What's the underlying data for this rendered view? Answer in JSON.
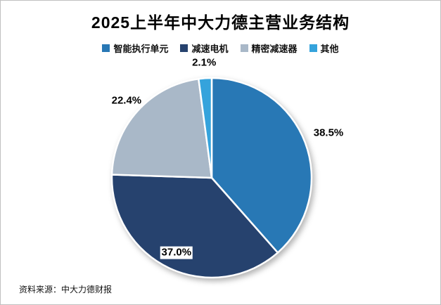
{
  "header": {
    "title": "2025上半年中大力德主营业务结构"
  },
  "chart_data": {
    "type": "pie",
    "title": "2025上半年中大力德主营业务结构",
    "categories": [
      "智能执行单元",
      "减速电机",
      "精密减速器",
      "其他"
    ],
    "values": [
      38.5,
      37.0,
      22.4,
      2.1
    ],
    "labels": [
      "38.5%",
      "37.0%",
      "22.4%",
      "2.1%"
    ],
    "colors": [
      "#2878B5",
      "#26426E",
      "#A9B8C8",
      "#35A3DC"
    ],
    "start_angle_deg": 0,
    "direction": "clockwise",
    "legend_position": "top",
    "label_radius_factors": [
      1.25,
      0.83,
      1.15,
      1.15
    ]
  },
  "footer": {
    "source_text": "资料来源：中大力德财报"
  }
}
